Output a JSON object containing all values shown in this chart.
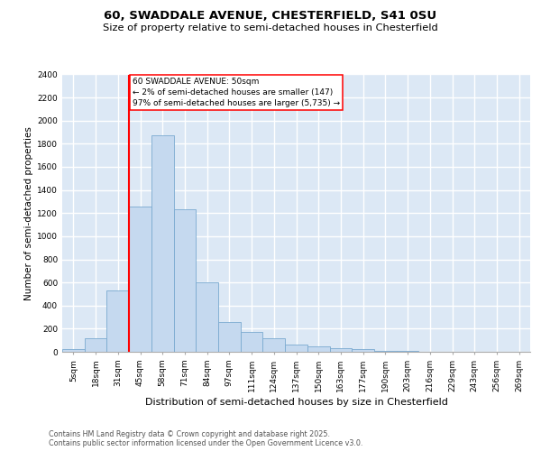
{
  "title_line1": "60, SWADDALE AVENUE, CHESTERFIELD, S41 0SU",
  "title_line2": "Size of property relative to semi-detached houses in Chesterfield",
  "xlabel": "Distribution of semi-detached houses by size in Chesterfield",
  "ylabel": "Number of semi-detached properties",
  "categories": [
    "5sqm",
    "18sqm",
    "31sqm",
    "45sqm",
    "58sqm",
    "71sqm",
    "84sqm",
    "97sqm",
    "111sqm",
    "124sqm",
    "137sqm",
    "150sqm",
    "163sqm",
    "177sqm",
    "190sqm",
    "203sqm",
    "216sqm",
    "229sqm",
    "243sqm",
    "256sqm",
    "269sqm"
  ],
  "bar_values": [
    25,
    120,
    530,
    1260,
    1870,
    1230,
    600,
    260,
    170,
    115,
    60,
    50,
    30,
    20,
    10,
    5,
    3,
    2,
    1,
    1,
    1
  ],
  "bar_color": "#c5d9ef",
  "bar_edge_color": "#7aaad0",
  "annotation_text": "60 SWADDALE AVENUE: 50sqm\n← 2% of semi-detached houses are smaller (147)\n97% of semi-detached houses are larger (5,735) →",
  "annotation_box_color": "white",
  "annotation_box_edge_color": "red",
  "vline_color": "red",
  "vline_x": 2.5,
  "ylim": [
    0,
    2400
  ],
  "yticks": [
    0,
    200,
    400,
    600,
    800,
    1000,
    1200,
    1400,
    1600,
    1800,
    2000,
    2200,
    2400
  ],
  "bg_color": "#dce8f5",
  "grid_color": "white",
  "footer_text": "Contains HM Land Registry data © Crown copyright and database right 2025.\nContains public sector information licensed under the Open Government Licence v3.0.",
  "title_fontsize": 9.5,
  "subtitle_fontsize": 8.2,
  "xlabel_fontsize": 8,
  "ylabel_fontsize": 7.5,
  "tick_fontsize": 6.5,
  "footer_fontsize": 5.8,
  "annot_fontsize": 6.5
}
